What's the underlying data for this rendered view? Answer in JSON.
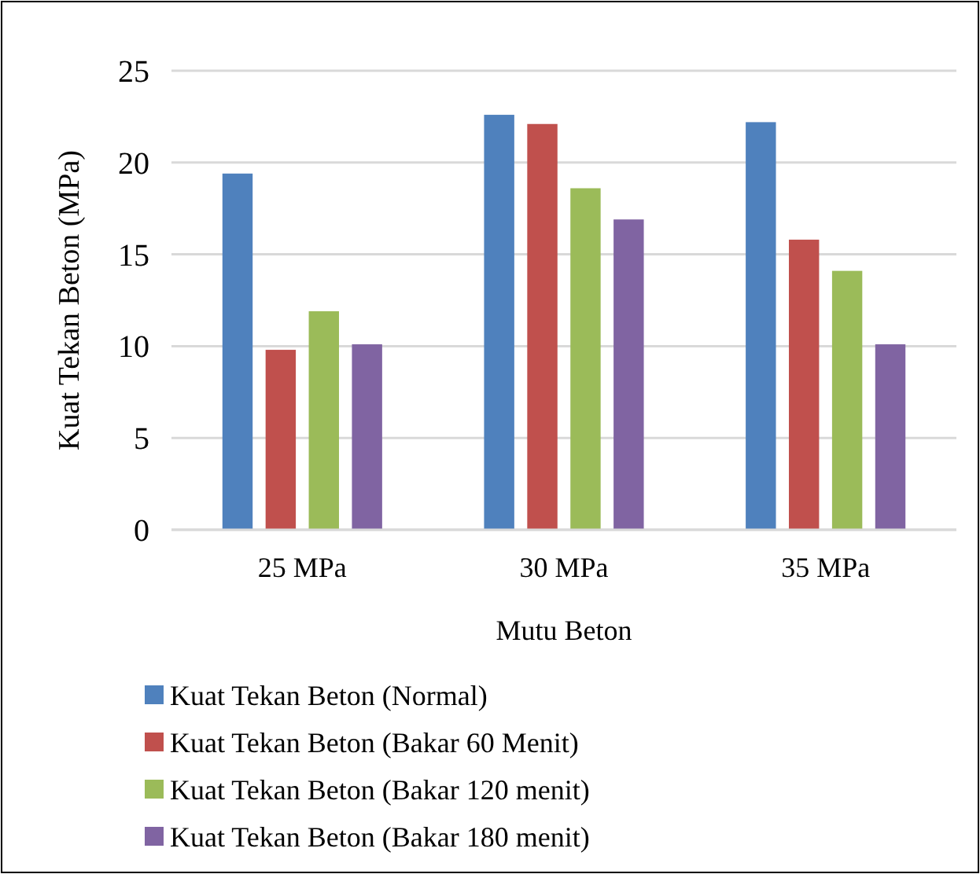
{
  "chart_data": {
    "type": "bar",
    "xlabel": "Mutu Beton",
    "ylabel": "Kuat Tekan Beton (MPa)",
    "categories": [
      "25 MPa",
      "30 MPa",
      "35 MPa"
    ],
    "series": [
      {
        "name": "Kuat Tekan Beton (Normal)",
        "color": "#4f81bd",
        "values": [
          19.4,
          22.6,
          22.2
        ]
      },
      {
        "name": "Kuat Tekan Beton (Bakar 60 Menit)",
        "color": "#c0504d",
        "values": [
          9.8,
          22.1,
          15.8
        ]
      },
      {
        "name": "Kuat Tekan Beton (Bakar 120 menit)",
        "color": "#9bbb59",
        "values": [
          11.9,
          18.6,
          14.1
        ]
      },
      {
        "name": "Kuat Tekan Beton (Bakar 180 menit)",
        "color": "#8064a2",
        "values": [
          10.1,
          16.9,
          10.1
        ]
      }
    ],
    "ylim": [
      0,
      25
    ],
    "yticks": [
      0,
      5,
      10,
      15,
      20,
      25
    ],
    "grid": "y",
    "legend": "bottom"
  }
}
